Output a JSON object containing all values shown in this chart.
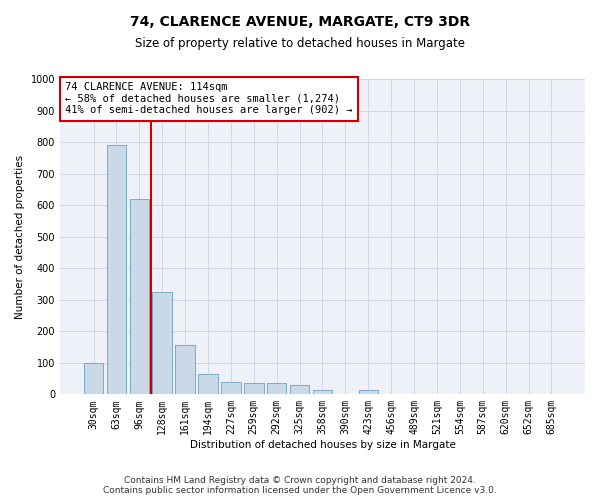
{
  "title": "74, CLARENCE AVENUE, MARGATE, CT9 3DR",
  "subtitle": "Size of property relative to detached houses in Margate",
  "xlabel": "Distribution of detached houses by size in Margate",
  "ylabel": "Number of detached properties",
  "categories": [
    "30sqm",
    "63sqm",
    "96sqm",
    "128sqm",
    "161sqm",
    "194sqm",
    "227sqm",
    "259sqm",
    "292sqm",
    "325sqm",
    "358sqm",
    "390sqm",
    "423sqm",
    "456sqm",
    "489sqm",
    "521sqm",
    "554sqm",
    "587sqm",
    "620sqm",
    "652sqm",
    "685sqm"
  ],
  "values": [
    100,
    790,
    620,
    325,
    155,
    65,
    40,
    37,
    35,
    30,
    15,
    0,
    15,
    0,
    0,
    0,
    0,
    0,
    0,
    0,
    0
  ],
  "bar_color": "#c9d9e8",
  "bar_edge_color": "#7aaac8",
  "vline_color": "#cc0000",
  "annotation_text": "74 CLARENCE AVENUE: 114sqm\n← 58% of detached houses are smaller (1,274)\n41% of semi-detached houses are larger (902) →",
  "annotation_box_color": "#ffffff",
  "annotation_box_edge": "#cc0000",
  "ylim": [
    0,
    1000
  ],
  "yticks": [
    0,
    100,
    200,
    300,
    400,
    500,
    600,
    700,
    800,
    900,
    1000
  ],
  "grid_color": "#d0d8e8",
  "background_color": "#eef2f8",
  "footer1": "Contains HM Land Registry data © Crown copyright and database right 2024.",
  "footer2": "Contains public sector information licensed under the Open Government Licence v3.0.",
  "title_fontsize": 10,
  "subtitle_fontsize": 8.5,
  "axis_label_fontsize": 7.5,
  "tick_fontsize": 7,
  "annotation_fontsize": 7.5,
  "footer_fontsize": 6.5
}
